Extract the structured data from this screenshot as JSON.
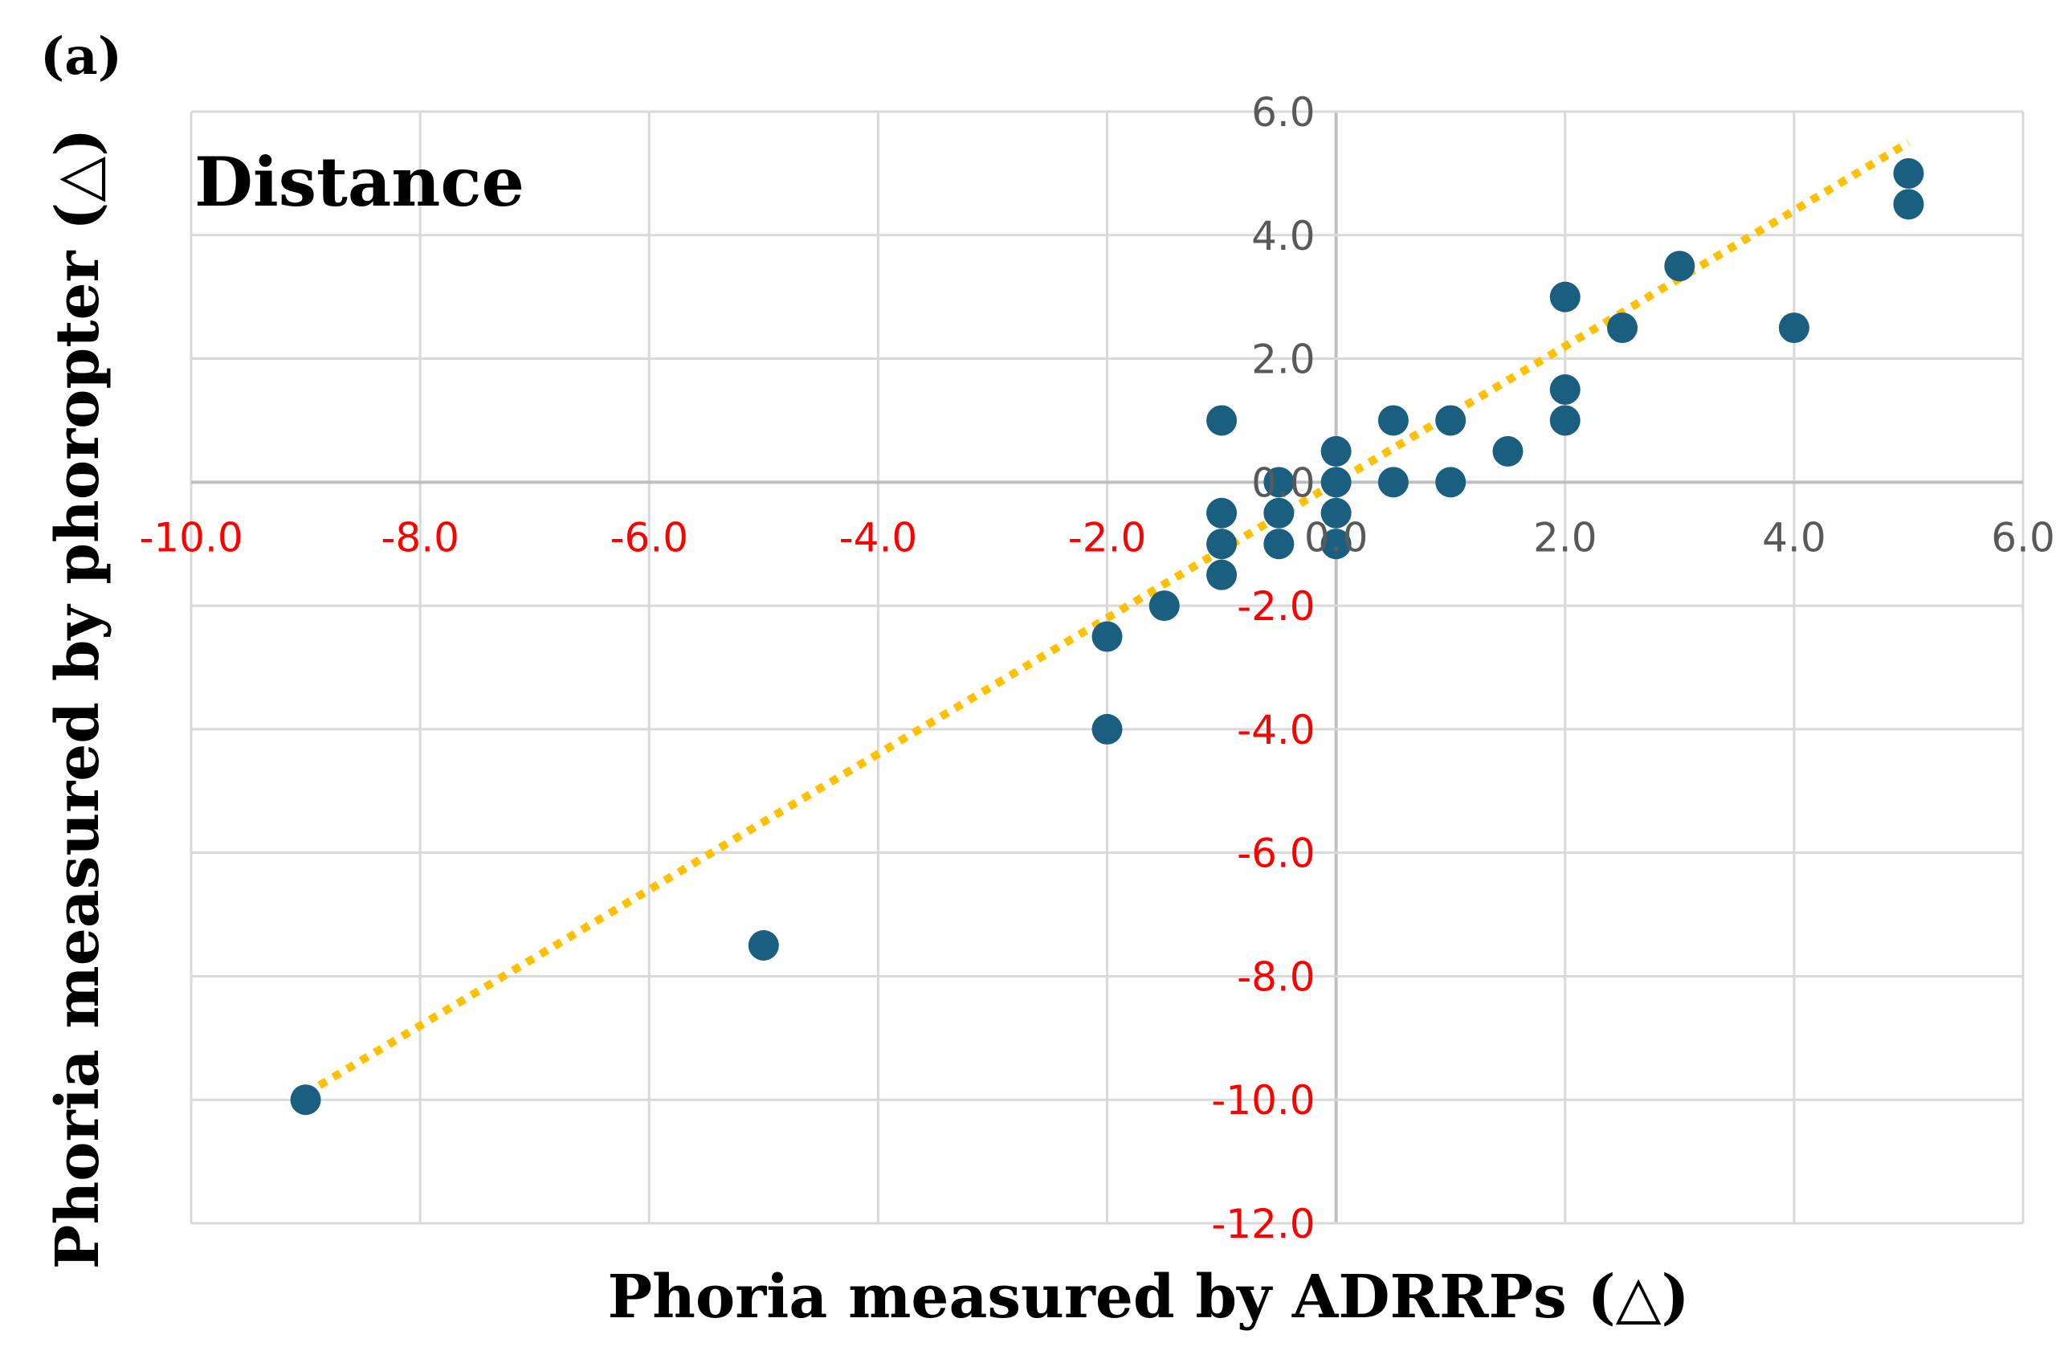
{
  "panel_label": "(a)",
  "chart_data": {
    "type": "scatter",
    "title": "Distance",
    "xlabel": "Phoria measured by ADRRPs (△)",
    "ylabel": "Phoria measured by phoropter (△)",
    "xlim": [
      -10,
      6
    ],
    "ylim": [
      -12,
      6
    ],
    "xticks": [
      -10,
      -8,
      -6,
      -4,
      -2,
      0,
      2,
      4,
      6
    ],
    "yticks": [
      6,
      4,
      2,
      0,
      -2,
      -4,
      -6,
      -8,
      -10,
      -12
    ],
    "xtick_labels": [
      "-10.0",
      "-8.0",
      "-6.0",
      "-4.0",
      "-2.0",
      "0.0",
      "2.0",
      "4.0",
      "6.0"
    ],
    "ytick_labels": [
      "6.0",
      "4.0",
      "2.0",
      "0.0",
      "-2.0",
      "-4.0",
      "-6.0",
      "-8.0",
      "-10.0",
      "-12.0"
    ],
    "grid": true,
    "colors": {
      "points": "#1a5e80",
      "trendline": "#ffc000",
      "negative_ticks": "#ff0000",
      "positive_ticks": "#595959",
      "grid": "#d9d9d9",
      "axis": "#bfbfbf"
    },
    "points": [
      [
        5,
        5
      ],
      [
        5,
        4.5
      ],
      [
        3,
        3.5
      ],
      [
        2,
        3
      ],
      [
        2.5,
        2.5
      ],
      [
        4,
        2.5
      ],
      [
        2,
        1.5
      ],
      [
        2,
        1
      ],
      [
        0.5,
        1
      ],
      [
        1,
        1
      ],
      [
        -1,
        1
      ],
      [
        1.5,
        0.5
      ],
      [
        0,
        0.5
      ],
      [
        -0.5,
        0
      ],
      [
        0,
        0
      ],
      [
        0.5,
        0
      ],
      [
        1,
        0
      ],
      [
        -1,
        -0.5
      ],
      [
        -0.5,
        -0.5
      ],
      [
        0,
        -0.5
      ],
      [
        -1,
        -1
      ],
      [
        -0.5,
        -1
      ],
      [
        0,
        -1
      ],
      [
        -1,
        -1.5
      ],
      [
        -1.5,
        -2
      ],
      [
        -2,
        -2.5
      ],
      [
        -2,
        -4
      ],
      [
        -5,
        -7.5
      ],
      [
        -9,
        -10
      ]
    ],
    "trendline": {
      "type": "linear",
      "style": "dotted",
      "x": [
        -9,
        5
      ],
      "y": [
        -9.9,
        5.5
      ]
    }
  }
}
